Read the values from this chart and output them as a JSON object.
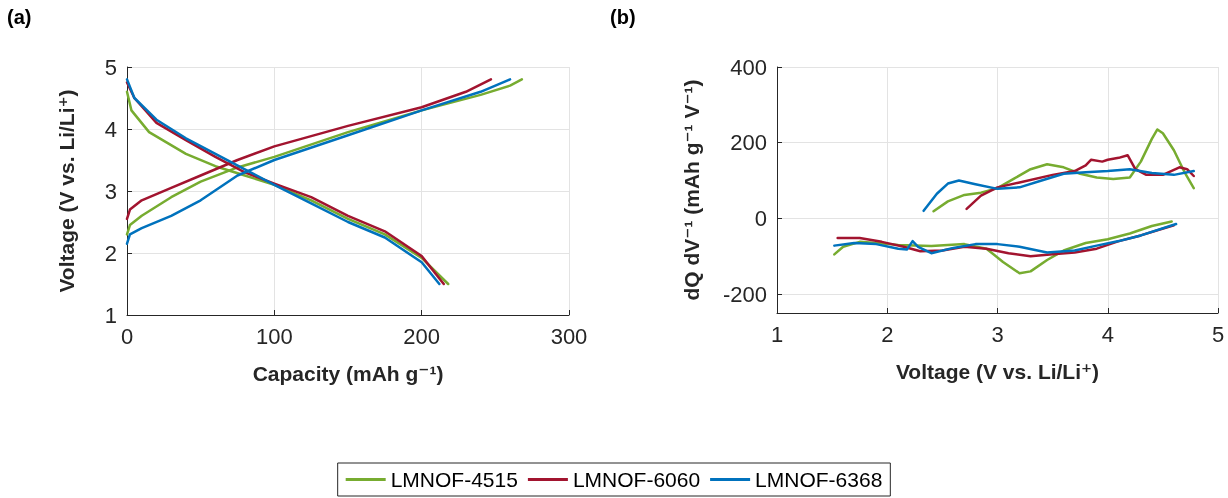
{
  "chart_data": [
    {
      "type": "line",
      "title": "(a)",
      "xlabel": "Capacity (mAh g⁻¹)",
      "ylabel": "Voltage (V vs. Li/Li⁺)",
      "xlim": [
        0,
        300
      ],
      "xticks": [
        0,
        100,
        200,
        300
      ],
      "ylim": [
        1,
        5
      ],
      "yticks": [
        1,
        2,
        3,
        4,
        5
      ],
      "grid": true,
      "series": [
        {
          "color": "#77ac30",
          "x": [
            0,
            2,
            10,
            30,
            50,
            75,
            100,
            150,
            200,
            240,
            260,
            268
          ],
          "values": [
            2.3,
            2.45,
            2.6,
            2.9,
            3.15,
            3.38,
            3.55,
            3.95,
            4.3,
            4.55,
            4.7,
            4.8
          ]
        },
        {
          "color": "#77ac30",
          "x": [
            0,
            3,
            15,
            40,
            60,
            80,
            100,
            125,
            150,
            175,
            200,
            218
          ],
          "values": [
            4.6,
            4.3,
            3.95,
            3.6,
            3.4,
            3.25,
            3.1,
            2.85,
            2.55,
            2.3,
            1.92,
            1.5
          ]
        },
        {
          "color": "#a2142f",
          "x": [
            0,
            2,
            10,
            30,
            50,
            75,
            100,
            150,
            200,
            230,
            247
          ],
          "values": [
            2.55,
            2.7,
            2.85,
            3.05,
            3.25,
            3.5,
            3.72,
            4.05,
            4.35,
            4.6,
            4.8
          ]
        },
        {
          "color": "#a2142f",
          "x": [
            0,
            5,
            20,
            40,
            60,
            80,
            100,
            125,
            150,
            175,
            200,
            215
          ],
          "values": [
            4.75,
            4.5,
            4.1,
            3.82,
            3.55,
            3.3,
            3.12,
            2.9,
            2.6,
            2.35,
            1.95,
            1.5
          ]
        },
        {
          "color": "#0072bd",
          "x": [
            0,
            2,
            10,
            30,
            50,
            75,
            100,
            150,
            200,
            240,
            260
          ],
          "values": [
            2.15,
            2.3,
            2.4,
            2.6,
            2.85,
            3.25,
            3.5,
            3.9,
            4.3,
            4.6,
            4.8
          ]
        },
        {
          "color": "#0072bd",
          "x": [
            0,
            5,
            20,
            40,
            60,
            80,
            100,
            125,
            150,
            175,
            200,
            212
          ],
          "values": [
            4.8,
            4.5,
            4.15,
            3.85,
            3.6,
            3.35,
            3.1,
            2.8,
            2.5,
            2.25,
            1.85,
            1.5
          ]
        }
      ]
    },
    {
      "type": "line",
      "title": "(b)",
      "xlabel": "Voltage (V vs. Li/Li⁺)",
      "ylabel": "dQ dV⁻¹ (mAh g⁻¹ V⁻¹)",
      "xlim": [
        1,
        5
      ],
      "xticks": [
        1,
        2,
        3,
        4,
        5
      ],
      "ylim": [
        -250,
        400
      ],
      "yticks": [
        -200,
        0,
        200,
        400
      ],
      "grid": true,
      "legend": "bottom",
      "series": [
        {
          "name": "LMNOF-4515",
          "color": "#77ac30",
          "x": [
            2.42,
            2.55,
            2.7,
            2.85,
            3.0,
            3.15,
            3.3,
            3.45,
            3.6,
            3.75,
            3.9,
            4.05,
            4.2,
            4.3,
            4.4,
            4.45,
            4.5,
            4.6,
            4.7,
            4.78
          ],
          "values": [
            19,
            45,
            62,
            68,
            80,
            105,
            130,
            143,
            135,
            118,
            108,
            104,
            108,
            150,
            210,
            235,
            225,
            180,
            120,
            80
          ]
        },
        {
          "color": "#77ac30",
          "x": [
            1.52,
            1.6,
            1.75,
            1.9,
            2.1,
            2.4,
            2.7,
            2.9,
            3.05,
            3.2,
            3.3,
            3.45,
            3.6,
            3.8,
            4.0,
            4.2,
            4.4,
            4.58
          ],
          "values": [
            -95,
            -75,
            -62,
            -65,
            -70,
            -73,
            -68,
            -80,
            -115,
            -145,
            -140,
            -110,
            -85,
            -65,
            -55,
            -40,
            -20,
            -8
          ]
        },
        {
          "name": "LMNOF-6060",
          "color": "#a2142f",
          "x": [
            2.72,
            2.85,
            3.0,
            3.2,
            3.5,
            3.7,
            3.8,
            3.85,
            3.95,
            4.0,
            4.1,
            4.18,
            4.25,
            4.35,
            4.5,
            4.65,
            4.72,
            4.78
          ],
          "values": [
            25,
            60,
            82,
            95,
            115,
            125,
            140,
            155,
            150,
            155,
            160,
            167,
            130,
            115,
            115,
            135,
            130,
            112
          ]
        },
        {
          "color": "#a2142f",
          "x": [
            1.55,
            1.75,
            1.95,
            2.15,
            2.3,
            2.5,
            2.7,
            2.9,
            3.1,
            3.3,
            3.5,
            3.7,
            3.9,
            4.1,
            4.3,
            4.6
          ],
          "values": [
            -52,
            -52,
            -62,
            -75,
            -87,
            -85,
            -75,
            -80,
            -92,
            -100,
            -95,
            -90,
            -80,
            -60,
            -45,
            -18
          ]
        },
        {
          "name": "LMNOF-6368",
          "color": "#0072bd",
          "x": [
            2.33,
            2.45,
            2.55,
            2.65,
            2.8,
            3.0,
            3.2,
            3.4,
            3.6,
            3.8,
            4.0,
            4.2,
            4.4,
            4.6,
            4.78
          ],
          "values": [
            20,
            65,
            92,
            100,
            90,
            78,
            82,
            100,
            118,
            122,
            125,
            130,
            120,
            115,
            125
          ]
        },
        {
          "color": "#0072bd",
          "x": [
            1.52,
            1.7,
            1.9,
            2.1,
            2.18,
            2.23,
            2.28,
            2.4,
            2.6,
            2.8,
            3.0,
            3.2,
            3.45,
            3.7,
            3.9,
            4.1,
            4.3,
            4.62
          ],
          "values": [
            -72,
            -65,
            -68,
            -80,
            -82,
            -60,
            -75,
            -92,
            -78,
            -68,
            -68,
            -75,
            -90,
            -85,
            -72,
            -60,
            -45,
            -15
          ]
        }
      ]
    }
  ]
}
